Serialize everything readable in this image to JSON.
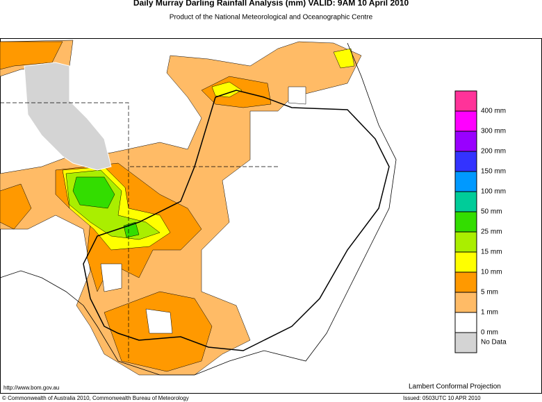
{
  "title": "Daily Murray Darling Rainfall Analysis (mm)  VALID: 9AM 10 April 2010",
  "subtitle": "Product of the National Meteorological and Oceanographic Centre",
  "legend": {
    "colors": [
      "#ff3399",
      "#ff00ff",
      "#9900ff",
      "#3333ff",
      "#0099ff",
      "#00cc99",
      "#33dd00",
      "#aaee00",
      "#ffff00",
      "#ff9900",
      "#ffbb66",
      "#ffffff",
      "#d4d4d4"
    ],
    "labels": [
      "400 mm",
      "300 mm",
      "200 mm",
      "150 mm",
      "100 mm",
      "50 mm",
      "25 mm",
      "15 mm",
      "10 mm",
      "5 mm",
      "1 mm",
      "0 mm",
      "No Data"
    ]
  },
  "footer": {
    "url": "http://www.bom.gov.au",
    "copyright": "© Commonwealth of Australia 2010, Commonwealth Bureau of Meteorology",
    "projection": "Lambert Conformal Projection",
    "issued": "Issued: 0503UTC 10 APR 2010"
  }
}
